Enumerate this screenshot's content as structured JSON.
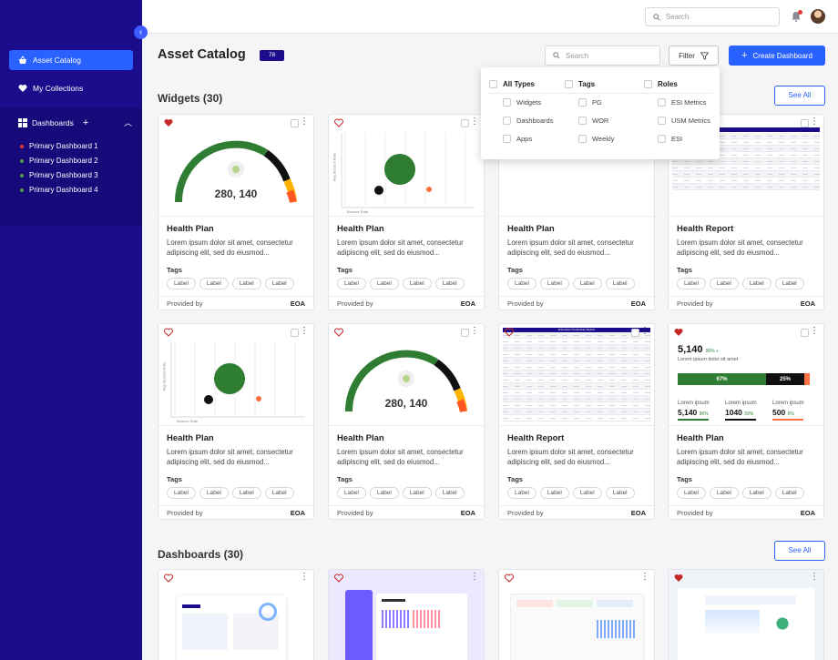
{
  "sidebar": {
    "items": [
      {
        "label": "Asset Catalog",
        "icon": "basket-icon",
        "active": true
      },
      {
        "label": "My Collections",
        "icon": "heart-icon",
        "active": false
      }
    ],
    "dashboards": {
      "label": "Dashboards",
      "sub": [
        {
          "label": "Primary Dashboard 1",
          "color": "#e53935"
        },
        {
          "label": "Primary Dashboard 2",
          "color": "#43a047"
        },
        {
          "label": "Primary Dashboard 3",
          "color": "#43a047"
        },
        {
          "label": "Primary Dashboard 4",
          "color": "#43a047"
        }
      ]
    }
  },
  "topbar": {
    "search_placeholder": "Search"
  },
  "header": {
    "title": "Asset Catalog",
    "count": "78",
    "search_placeholder": "Search",
    "filter_label": "Filter",
    "create_label": "Create Dashboard"
  },
  "filter": {
    "columns": [
      {
        "head": "All Types",
        "options": [
          "Widgets",
          "Dashboards",
          "Apps"
        ]
      },
      {
        "head": "Tags",
        "options": [
          "PG",
          "WOR",
          "Weekly"
        ]
      },
      {
        "head": "Roles",
        "options": [
          "ESI Metrics",
          "USM Metrics",
          "ESI"
        ]
      }
    ]
  },
  "widgets": {
    "title": "Widgets (30)",
    "see_all": "See All",
    "cards": [
      {
        "title": "Health Plan",
        "desc": "Lorem ipsum dolor sit amet, consectetur adipiscing elit, sed do eiusmod...",
        "type": "gauge",
        "favorite": true,
        "value": "280, 140"
      },
      {
        "title": "Health Plan",
        "desc": "Lorem ipsum dolor sit amet, consectetur adipiscing elit, sed do eiusmod...",
        "type": "bubble",
        "favorite": false,
        "ylabel": "Avg Session Rate",
        "xlabel": "Bounce Rate"
      },
      {
        "title": "Health Plan",
        "desc": "Lorem ipsum dolor sit amet, consectetur adipiscing elit, sed do eiusmod...",
        "type": "progress-partial",
        "favorite": false
      },
      {
        "title": "Health Report",
        "desc": "Lorem ipsum dolor sit amet, consectetur adipiscing elit, sed do eiusmod...",
        "type": "table-partial",
        "favorite": false
      },
      {
        "title": "Health Plan",
        "desc": "Lorem ipsum dolor sit amet, consectetur adipiscing elit, sed do eiusmod...",
        "type": "bubble",
        "favorite": false,
        "ylabel": "Avg Session Rate",
        "xlabel": "Bounce Rate"
      },
      {
        "title": "Health Plan",
        "desc": "Lorem ipsum dolor sit amet, consectetur adipiscing elit, sed do eiusmod...",
        "type": "gauge",
        "favorite": false,
        "value": "280, 140"
      },
      {
        "title": "Health Report",
        "desc": "Lorem ipsum dolor sit amet, consectetur adipiscing elit, sed do eiusmod...",
        "type": "table",
        "favorite": false,
        "table_title": "Enterprise Productivity Metrics"
      },
      {
        "title": "Health Plan",
        "desc": "Lorem ipsum dolor sit amet, consectetur adipiscing elit, sed do eiusmod...",
        "type": "progress",
        "favorite": true
      }
    ],
    "tags_label": "Tags",
    "label": "Label",
    "provided_by": "Provided by",
    "provider": "EOA"
  },
  "progress": {
    "headline": "5,140",
    "headline_pct": "96% +",
    "sub": "Lorem ipsum dolor sit amet",
    "bar_pct": 0.67,
    "bar_label_a": "67%",
    "bar_label_b": "25%",
    "stats": [
      {
        "label": "Lorem ipsum",
        "value": "5,140",
        "pct": "96%",
        "color": "#2e7d32"
      },
      {
        "label": "Lorem ipsum",
        "value": "1040",
        "pct": "39%",
        "color": "#111111"
      },
      {
        "label": "Lorem ipsum",
        "value": "500",
        "pct": "6%",
        "color": "#ff7043"
      }
    ]
  },
  "dashboards": {
    "title": "Dashboards  (30)",
    "see_all": "See All"
  }
}
